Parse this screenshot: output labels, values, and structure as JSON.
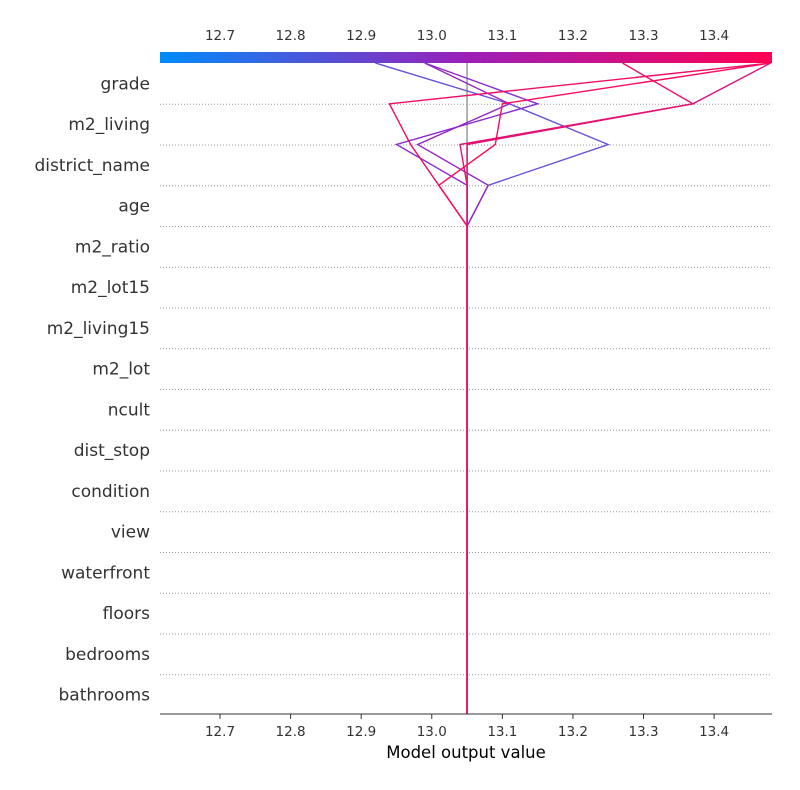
{
  "chart_data": {
    "type": "line",
    "xlabel": "Model output value",
    "xlim": [
      12.615,
      13.482
    ],
    "xticks": [
      12.7,
      12.8,
      12.9,
      13.0,
      13.1,
      13.2,
      13.3,
      13.4
    ],
    "xtick_labels": [
      "12.7",
      "12.8",
      "12.9",
      "13.0",
      "13.1",
      "13.2",
      "13.3",
      "13.4"
    ],
    "base_value": 13.05,
    "features": [
      "grade",
      "m2_living",
      "district_name",
      "age",
      "m2_ratio",
      "m2_lot15",
      "m2_living15",
      "m2_lot",
      "ncult",
      "dist_stop",
      "condition",
      "view",
      "waterfront",
      "floors",
      "bedrooms",
      "bathrooms"
    ],
    "colorbar": {
      "from": "#008bfb",
      "mid": "#9b1fb8",
      "to": "#ff0052"
    },
    "series": [
      {
        "color": "#6b4fd8",
        "values": [
          12.92,
          13.11,
          13.25,
          13.08,
          13.05,
          13.05,
          13.05,
          13.05,
          13.05,
          13.05,
          13.05,
          13.05,
          13.05,
          13.05,
          13.05,
          13.05,
          13.05
        ]
      },
      {
        "color": "#8a2bd0",
        "values": [
          12.99,
          13.15,
          12.95,
          13.05,
          13.05,
          13.05,
          13.05,
          13.05,
          13.05,
          13.05,
          13.05,
          13.05,
          13.05,
          13.05,
          13.05,
          13.05,
          13.05
        ]
      },
      {
        "color": "#9626c2",
        "values": [
          12.99,
          13.11,
          12.98,
          13.08,
          13.05,
          13.05,
          13.05,
          13.05,
          13.05,
          13.05,
          13.05,
          13.05,
          13.05,
          13.05,
          13.05,
          13.05,
          13.05
        ]
      },
      {
        "color": "#d8127c",
        "values": [
          13.48,
          13.37,
          13.05,
          13.05,
          13.05,
          13.05,
          13.05,
          13.05,
          13.05,
          13.05,
          13.05,
          13.05,
          13.05,
          13.05,
          13.05,
          13.05,
          13.05
        ]
      },
      {
        "color": "#e8106e",
        "values": [
          13.27,
          13.37,
          13.04,
          13.05,
          13.05,
          13.05,
          13.05,
          13.05,
          13.05,
          13.05,
          13.05,
          13.05,
          13.05,
          13.05,
          13.05,
          13.05,
          13.05
        ]
      },
      {
        "color": "#f00d64",
        "values": [
          13.48,
          12.94,
          12.97,
          13.01,
          13.05,
          13.05,
          13.05,
          13.05,
          13.05,
          13.05,
          13.05,
          13.05,
          13.05,
          13.05,
          13.05,
          13.05,
          13.05
        ]
      },
      {
        "color": "#ff0a5a",
        "values": [
          13.48,
          13.1,
          13.09,
          13.01,
          13.05,
          13.05,
          13.05,
          13.05,
          13.05,
          13.05,
          13.05,
          13.05,
          13.05,
          13.05,
          13.05,
          13.05,
          13.05
        ]
      }
    ]
  }
}
